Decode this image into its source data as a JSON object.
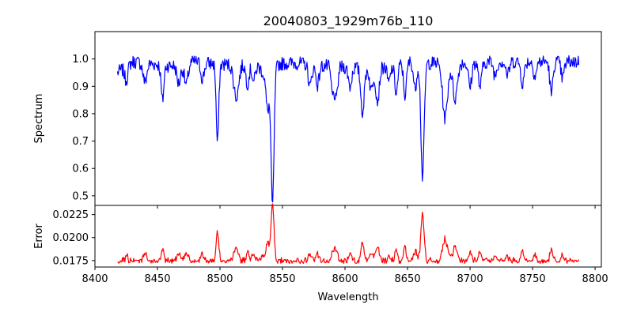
{
  "chart_data": [
    {
      "type": "line",
      "title": "20040803_1929m76b_110",
      "xlabel": "",
      "ylabel": "Spectrum",
      "xlim": [
        8400,
        8805
      ],
      "ylim": [
        0.465,
        1.1
      ],
      "xticks": [
        8400,
        8450,
        8500,
        8550,
        8600,
        8650,
        8700,
        8750,
        8800
      ],
      "yticks": [
        0.5,
        0.6,
        0.7,
        0.8,
        0.9,
        1.0
      ],
      "ytick_labels": [
        "0.5",
        "0.6",
        "0.7",
        "0.8",
        "0.9",
        "1.0"
      ],
      "color": "#0000ff",
      "x_start": 8418,
      "x_end": 8787,
      "continuum": [
        [
          8418,
          0.95
        ],
        [
          8430,
          0.99
        ],
        [
          8440,
          0.985
        ],
        [
          8460,
          0.975
        ],
        [
          8480,
          0.99
        ],
        [
          8500,
          0.98
        ],
        [
          8520,
          0.98
        ],
        [
          8560,
          0.985
        ],
        [
          8580,
          0.975
        ],
        [
          8600,
          0.97
        ],
        [
          8620,
          0.965
        ],
        [
          8640,
          0.975
        ],
        [
          8650,
          0.99
        ],
        [
          8670,
          0.985
        ],
        [
          8690,
          0.985
        ],
        [
          8720,
          0.99
        ],
        [
          8750,
          0.99
        ],
        [
          8787,
          0.99
        ]
      ],
      "lines": [
        {
          "center": 8542,
          "depth": 0.49,
          "width": 1.2
        },
        {
          "center": 8662,
          "depth": 0.42,
          "width": 1.3
        },
        {
          "center": 8498,
          "depth": 0.29,
          "width": 1.0
        },
        {
          "center": 8454,
          "depth": 0.13,
          "width": 1.1
        },
        {
          "center": 8680,
          "depth": 0.2,
          "width": 2.0
        },
        {
          "center": 8614,
          "depth": 0.16,
          "width": 1.4
        },
        {
          "center": 8688,
          "depth": 0.13,
          "width": 1.8
        },
        {
          "center": 8538,
          "depth": 0.05,
          "width": 4.0
        },
        {
          "center": 8538,
          "depth": 0.12,
          "width": 1.2
        },
        {
          "center": 8513,
          "depth": 0.12,
          "width": 2.0
        },
        {
          "center": 8593,
          "depth": 0.12,
          "width": 1.2
        },
        {
          "center": 8626,
          "depth": 0.12,
          "width": 1.4
        },
        {
          "center": 8648,
          "depth": 0.12,
          "width": 1.2
        },
        {
          "center": 8656,
          "depth": 0.1,
          "width": 1.2
        },
        {
          "center": 8590,
          "depth": 0.1,
          "width": 1.2
        },
        {
          "center": 8641,
          "depth": 0.1,
          "width": 1.2
        },
        {
          "center": 8765,
          "depth": 0.12,
          "width": 1.2
        },
        {
          "center": 8742,
          "depth": 0.08,
          "width": 1.3
        },
        {
          "center": 8700,
          "depth": 0.09,
          "width": 1.3
        },
        {
          "center": 8708,
          "depth": 0.09,
          "width": 1.3
        },
        {
          "center": 8473,
          "depth": 0.08,
          "width": 1.5
        },
        {
          "center": 8467,
          "depth": 0.07,
          "width": 1.5
        },
        {
          "center": 8440,
          "depth": 0.07,
          "width": 1.5
        },
        {
          "center": 8621,
          "depth": 0.08,
          "width": 1.3
        },
        {
          "center": 8604,
          "depth": 0.07,
          "width": 1.3
        },
        {
          "center": 8572,
          "depth": 0.08,
          "width": 1.3
        },
        {
          "center": 8578,
          "depth": 0.07,
          "width": 1.3
        },
        {
          "center": 8522,
          "depth": 0.07,
          "width": 1.3
        },
        {
          "center": 8527,
          "depth": 0.06,
          "width": 1.3
        },
        {
          "center": 8486,
          "depth": 0.06,
          "width": 1.3
        },
        {
          "center": 8425,
          "depth": 0.05,
          "width": 1.3
        },
        {
          "center": 8635,
          "depth": 0.06,
          "width": 1.3
        },
        {
          "center": 8720,
          "depth": 0.05,
          "width": 1.3
        },
        {
          "center": 8730,
          "depth": 0.05,
          "width": 1.3
        },
        {
          "center": 8752,
          "depth": 0.05,
          "width": 1.3
        },
        {
          "center": 8774,
          "depth": 0.06,
          "width": 1.3
        }
      ]
    },
    {
      "type": "line",
      "title": "",
      "xlabel": "Wavelength",
      "ylabel": "Error",
      "xlim": [
        8400,
        8805
      ],
      "ylim": [
        0.0168,
        0.0235
      ],
      "xticks": [
        8400,
        8450,
        8500,
        8550,
        8600,
        8650,
        8700,
        8750,
        8800
      ],
      "yticks": [
        0.0175,
        0.02,
        0.0225
      ],
      "ytick_labels": [
        "0.0175",
        "0.0200",
        "0.0225"
      ],
      "color": "#ff0000",
      "x_start": 8418,
      "x_end": 8787,
      "baseline": 0.0173,
      "gain": 0.012,
      "noise": 0.0004
    }
  ]
}
